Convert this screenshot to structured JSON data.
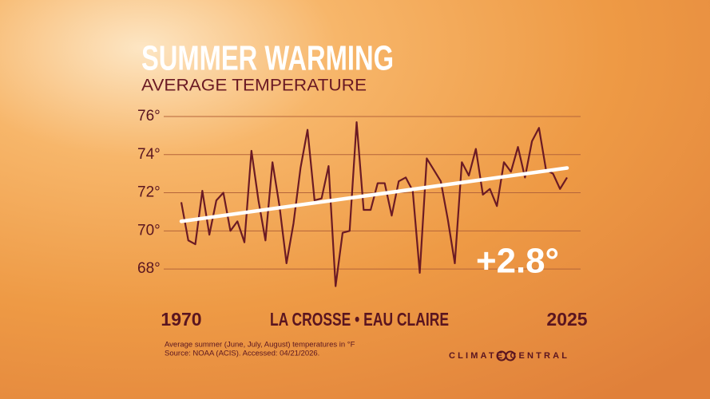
{
  "chart_data": {
    "type": "line",
    "title": "SUMMER WARMING",
    "subtitle": "AVERAGE TEMPERATURE",
    "location": "LA CROSSE • EAU CLAIRE",
    "annotation": "+2.8°",
    "footnote": [
      "Average summer (June, July, August) temperatures in °F",
      "Source: NOAA (ACIS). Accessed: 04/21/2026."
    ],
    "brand": "CLIMATE CENTRAL",
    "x": [
      1970,
      1971,
      1972,
      1973,
      1974,
      1975,
      1976,
      1977,
      1978,
      1979,
      1980,
      1981,
      1982,
      1983,
      1984,
      1985,
      1986,
      1987,
      1988,
      1989,
      1990,
      1991,
      1992,
      1993,
      1994,
      1995,
      1996,
      1997,
      1998,
      1999,
      2000,
      2001,
      2002,
      2003,
      2004,
      2005,
      2006,
      2007,
      2008,
      2009,
      2010,
      2011,
      2012,
      2013,
      2014,
      2015,
      2016,
      2017,
      2018,
      2019,
      2020,
      2021,
      2022,
      2023,
      2024,
      2025
    ],
    "series": [
      {
        "color": "#6b1a24",
        "values": [
          71.5,
          69.5,
          69.3,
          72.1,
          69.8,
          71.6,
          72.0,
          70.0,
          70.5,
          69.4,
          74.2,
          71.6,
          69.5,
          73.6,
          71.3,
          68.3,
          70.4,
          73.3,
          75.3,
          71.6,
          71.7,
          73.4,
          67.1,
          69.9,
          70.0,
          75.7,
          71.1,
          71.1,
          72.5,
          72.5,
          70.8,
          72.6,
          72.8,
          72.1,
          67.8,
          73.8,
          73.2,
          72.6,
          70.6,
          68.3,
          73.6,
          72.9,
          74.3,
          71.9,
          72.2,
          71.3,
          73.6,
          73.1,
          74.4,
          72.8,
          74.7,
          75.4,
          73.2,
          73.0,
          72.2,
          72.8
        ]
      }
    ],
    "trend": {
      "color": "#ffffff",
      "x": [
        1970,
        2025
      ],
      "values": [
        70.5,
        73.3
      ]
    },
    "xlim": [
      1970,
      2025
    ],
    "xticks": [
      1970,
      2025
    ],
    "ylim": [
      67,
      76.5
    ],
    "yticks": [
      {
        "value": 68,
        "label": "68°"
      },
      {
        "value": 70,
        "label": "70°"
      },
      {
        "value": 72,
        "label": "72°"
      },
      {
        "value": 74,
        "label": "74°"
      },
      {
        "value": 76,
        "label": "76°"
      }
    ],
    "grid": true
  }
}
